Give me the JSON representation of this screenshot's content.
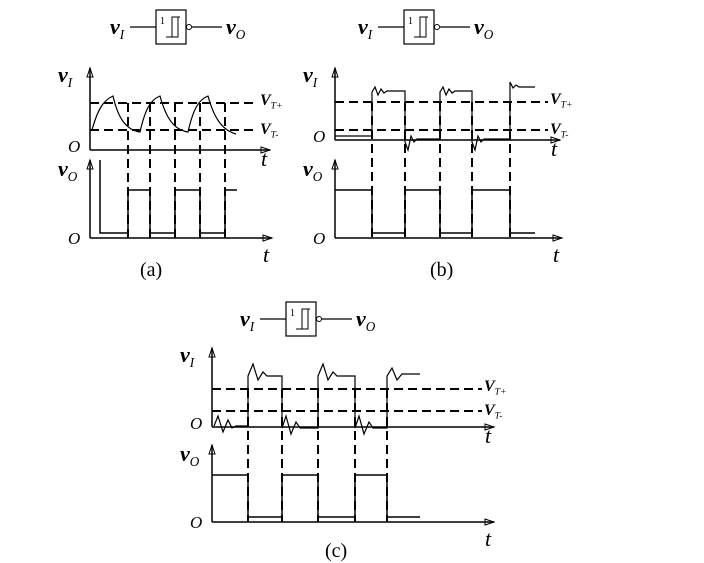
{
  "panels": [
    {
      "caption": "(a)",
      "gate": {
        "input": {
          "main": "v",
          "sub": "I"
        },
        "symbol": "1",
        "output": {
          "main": "v",
          "sub": "O"
        }
      },
      "input_axis": {
        "label": {
          "main": "v",
          "sub": "I"
        },
        "origin": "O",
        "time": "t"
      },
      "thresholds": [
        {
          "main": "V",
          "sub": "T+"
        },
        {
          "main": "V",
          "sub": "T-"
        }
      ],
      "output_axis": {
        "label": {
          "main": "v",
          "sub": "O"
        },
        "origin": "O",
        "time": "t"
      }
    },
    {
      "caption": "(b)",
      "gate": {
        "input": {
          "main": "v",
          "sub": "I"
        },
        "symbol": "1",
        "output": {
          "main": "v",
          "sub": "O"
        }
      },
      "input_axis": {
        "label": {
          "main": "v",
          "sub": "I"
        },
        "origin": "O",
        "time": "t"
      },
      "thresholds": [
        {
          "main": "V",
          "sub": "T+"
        },
        {
          "main": "V",
          "sub": "T-"
        }
      ],
      "output_axis": {
        "label": {
          "main": "v",
          "sub": "O"
        },
        "origin": "O",
        "time": "t"
      }
    },
    {
      "caption": "(c)",
      "gate": {
        "input": {
          "main": "v",
          "sub": "I"
        },
        "symbol": "1",
        "output": {
          "main": "v",
          "sub": "O"
        }
      },
      "input_axis": {
        "label": {
          "main": "v",
          "sub": "I"
        },
        "origin": "O",
        "time": "t"
      },
      "thresholds": [
        {
          "main": "V",
          "sub": "T+"
        },
        {
          "main": "V",
          "sub": "T-"
        }
      ],
      "output_axis": {
        "label": {
          "main": "v",
          "sub": "O"
        },
        "origin": "O",
        "time": "t"
      }
    }
  ]
}
